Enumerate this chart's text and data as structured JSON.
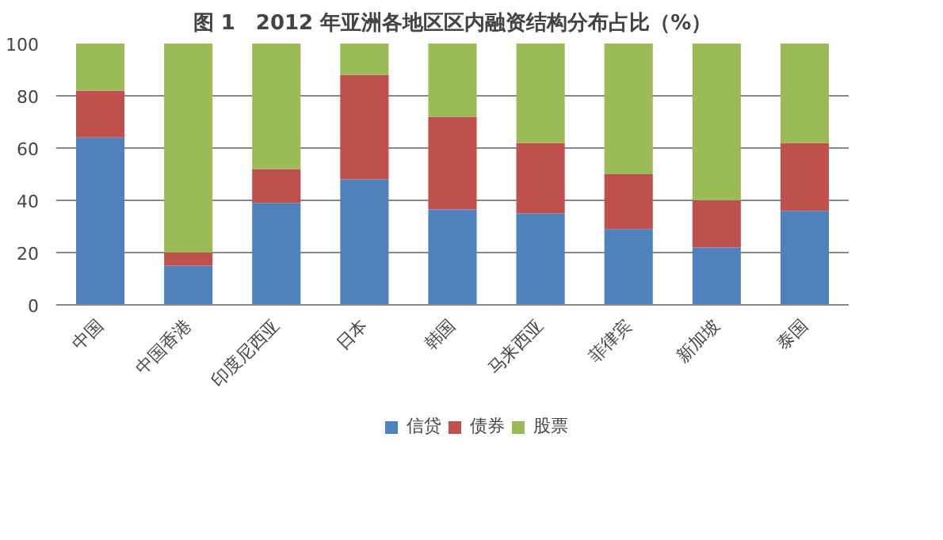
{
  "chart_data": {
    "type": "bar",
    "stacked": true,
    "title": "图 1　2012 年亚洲各地区区内融资结构分布占比（%）",
    "categories": [
      "中国",
      "中国香港",
      "印度尼西亚",
      "日本",
      "韩国",
      "马来西亚",
      "菲律宾",
      "新加坡",
      "泰国"
    ],
    "series": [
      {
        "name": "信贷",
        "color": "#4f81bd",
        "values": [
          64,
          15,
          39,
          48,
          36.5,
          35,
          29,
          22,
          36
        ]
      },
      {
        "name": "债券",
        "color": "#c0504d",
        "values": [
          18,
          5,
          13,
          40,
          35.5,
          27,
          21,
          18,
          26
        ]
      },
      {
        "name": "股票",
        "color": "#9bbb59",
        "values": [
          18,
          80,
          48,
          12,
          28,
          38,
          50,
          60,
          38
        ]
      }
    ],
    "ylim": [
      0,
      100
    ],
    "yticks": [
      0,
      20,
      40,
      60,
      80,
      100
    ],
    "grid": "y",
    "legend": "bottom"
  }
}
